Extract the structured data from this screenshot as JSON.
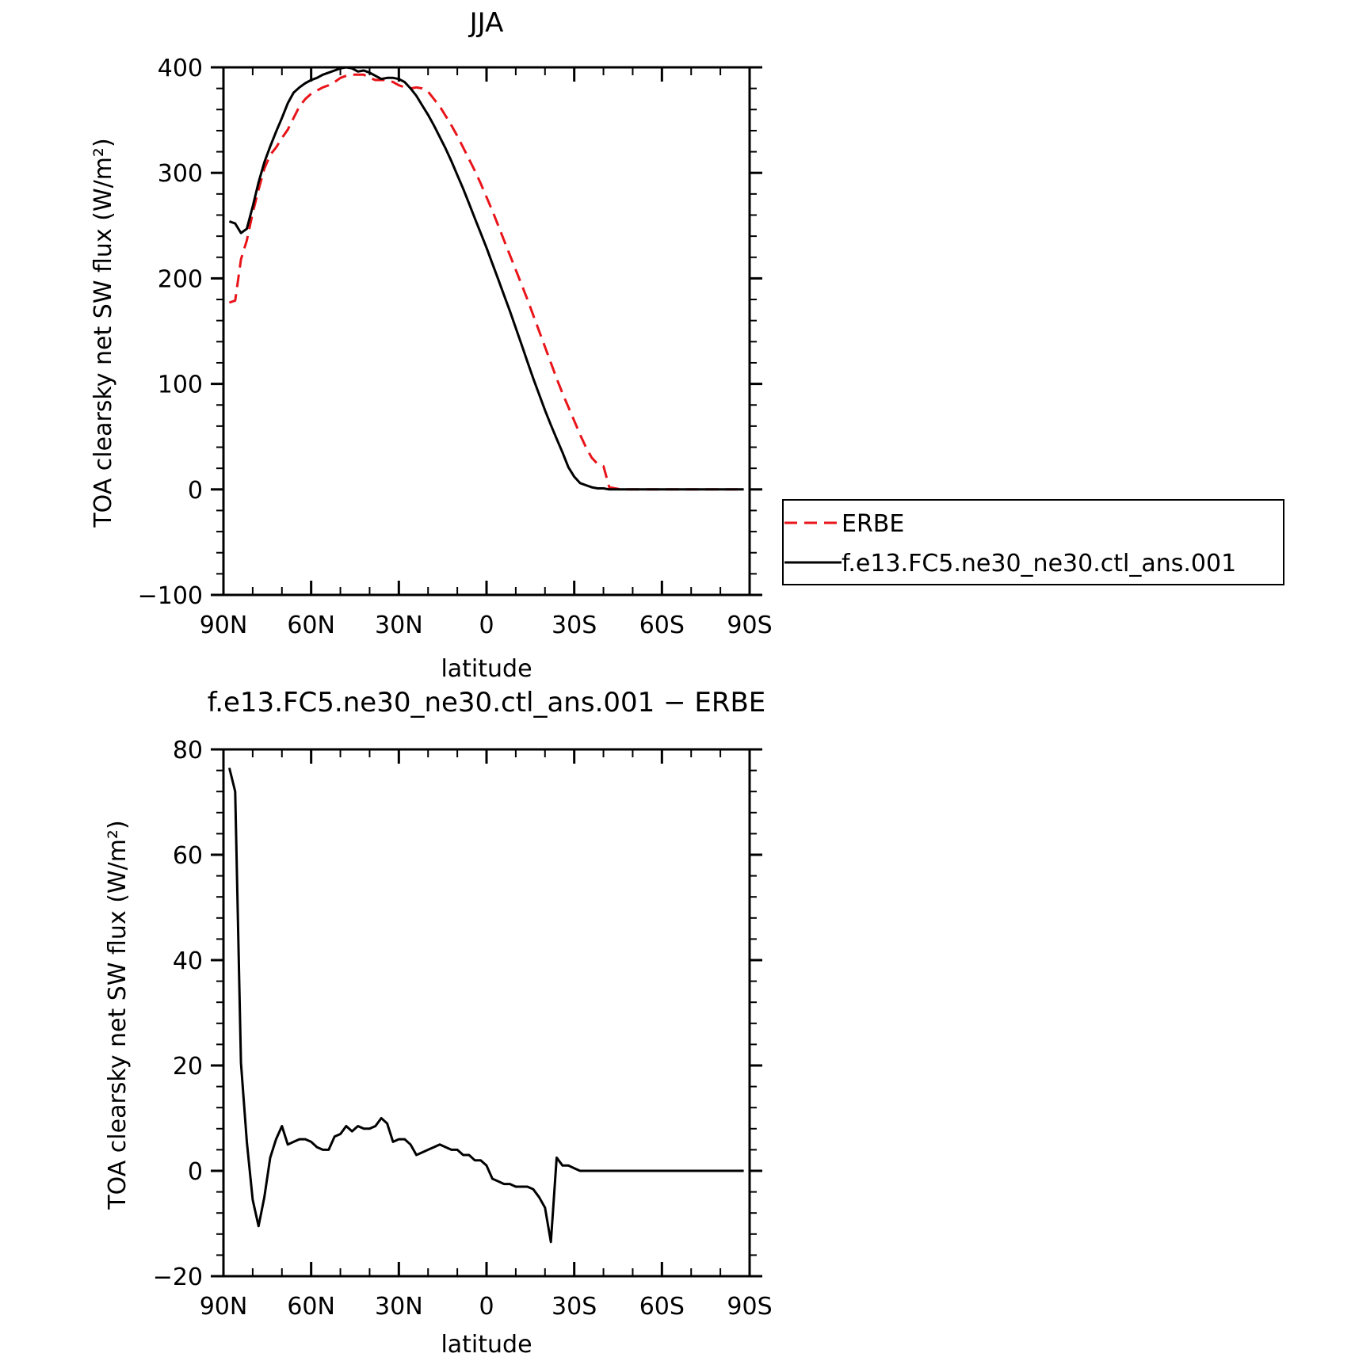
{
  "chart_data": [
    {
      "type": "line",
      "title": "JJA",
      "xlabel": "latitude",
      "ylabel": "TOA clearsky net SW flux (W/m²)",
      "xticks": [
        {
          "value": 90,
          "label": "90N"
        },
        {
          "value": 60,
          "label": "60N"
        },
        {
          "value": 30,
          "label": "30N"
        },
        {
          "value": 0,
          "label": "0"
        },
        {
          "value": -30,
          "label": "30S"
        },
        {
          "value": -60,
          "label": "60S"
        },
        {
          "value": -90,
          "label": "90S"
        }
      ],
      "yticks": [
        {
          "value": 400,
          "label": "400"
        },
        {
          "value": 300,
          "label": "300"
        },
        {
          "value": 200,
          "label": "200"
        },
        {
          "value": 100,
          "label": "100"
        },
        {
          "value": 0,
          "label": "0"
        },
        {
          "value": -100,
          "label": "−100"
        }
      ],
      "xlim": [
        90,
        -90
      ],
      "ylim": [
        -100,
        400
      ],
      "grid": false,
      "legend_position": "right",
      "series": [
        {
          "name": "ERBE",
          "color": "#e8141a",
          "dash": "dashed",
          "x": [
            88,
            86,
            84,
            82,
            80,
            78,
            76,
            74,
            72,
            70,
            68,
            66,
            64,
            62,
            60,
            58,
            56,
            54,
            52,
            50,
            48,
            46,
            44,
            42,
            40,
            38,
            36,
            34,
            32,
            30,
            28,
            26,
            24,
            22,
            20,
            18,
            16,
            14,
            12,
            10,
            8,
            6,
            4,
            2,
            0,
            -2,
            -4,
            -6,
            -8,
            -10,
            -12,
            -14,
            -16,
            -18,
            -20,
            -22,
            -24,
            -26,
            -28,
            -30,
            -32,
            -34,
            -36,
            -38,
            -40,
            -42,
            -44,
            -46,
            -48,
            -50,
            -52,
            -54,
            -56,
            -58,
            -60,
            -62,
            -64,
            -66,
            -68,
            -70,
            -72,
            -74,
            -76,
            -78,
            -80,
            -82,
            -84,
            -86,
            -88
          ],
          "y": [
            177,
            179,
            218,
            236,
            262,
            284,
            304,
            317,
            324,
            333,
            341,
            352,
            363,
            370,
            375,
            378,
            381,
            383,
            386,
            390,
            392,
            393,
            393,
            393,
            390,
            388,
            388,
            388,
            386,
            383,
            381,
            380,
            381,
            380,
            377,
            370,
            363,
            354,
            345,
            335,
            324,
            313,
            302,
            290,
            277,
            264,
            250,
            236,
            222,
            208,
            194,
            180,
            165,
            150,
            135,
            120,
            105,
            91,
            78,
            65,
            52,
            40,
            30,
            24,
            22,
            2,
            1,
            0,
            0,
            0,
            0,
            0,
            0,
            0,
            0,
            0,
            0,
            0,
            0,
            0,
            0,
            0,
            0,
            0,
            0,
            0,
            0,
            0,
            0
          ]
        },
        {
          "name": "f.e13.FC5.ne30_ne30.ctl_ans.001",
          "color": "#000000",
          "dash": "solid",
          "x": [
            88,
            86,
            84,
            82,
            80,
            78,
            76,
            74,
            72,
            70,
            68,
            66,
            64,
            62,
            60,
            58,
            56,
            54,
            52,
            50,
            48,
            46,
            44,
            42,
            40,
            38,
            36,
            34,
            32,
            30,
            28,
            26,
            24,
            22,
            20,
            18,
            16,
            14,
            12,
            10,
            8,
            6,
            4,
            2,
            0,
            -2,
            -4,
            -6,
            -8,
            -10,
            -12,
            -14,
            -16,
            -18,
            -20,
            -22,
            -24,
            -26,
            -28,
            -30,
            -32,
            -34,
            -36,
            -38,
            -40,
            -42,
            -44,
            -46,
            -48,
            -50,
            -52,
            -54,
            -56,
            -58,
            -60,
            -62,
            -64,
            -66,
            -68,
            -70,
            -72,
            -74,
            -76,
            -78,
            -80,
            -82,
            -84,
            -86,
            -88
          ],
          "y": [
            254,
            252,
            243,
            247,
            268,
            291,
            310,
            325,
            339,
            352,
            366,
            376,
            381,
            385,
            388,
            390,
            393,
            395,
            397,
            399,
            400,
            399,
            396,
            397,
            395,
            392,
            389,
            390,
            390,
            389,
            386,
            380,
            373,
            364,
            355,
            345,
            334,
            323,
            311,
            298,
            285,
            271,
            257,
            243,
            229,
            214,
            199,
            184,
            169,
            153,
            137,
            121,
            105,
            90,
            75,
            61,
            48,
            35,
            21,
            12,
            6,
            4,
            2,
            1,
            1,
            0,
            0,
            0,
            0,
            0,
            0,
            0,
            0,
            0,
            0,
            0,
            0,
            0,
            0,
            0,
            0,
            0,
            0,
            0,
            0,
            0,
            0,
            0,
            0
          ]
        }
      ]
    },
    {
      "type": "line",
      "title": "f.e13.FC5.ne30_ne30.ctl_ans.001 − ERBE",
      "xlabel": "latitude",
      "ylabel": "TOA clearsky net SW flux (W/m²)",
      "xticks": [
        {
          "value": 90,
          "label": "90N"
        },
        {
          "value": 60,
          "label": "60N"
        },
        {
          "value": 30,
          "label": "30N"
        },
        {
          "value": 0,
          "label": "0"
        },
        {
          "value": -30,
          "label": "30S"
        },
        {
          "value": -60,
          "label": "60S"
        },
        {
          "value": -90,
          "label": "90S"
        }
      ],
      "yticks": [
        {
          "value": 80,
          "label": "80"
        },
        {
          "value": 60,
          "label": "60"
        },
        {
          "value": 40,
          "label": "40"
        },
        {
          "value": 20,
          "label": "20"
        },
        {
          "value": 0,
          "label": "0"
        },
        {
          "value": -20,
          "label": "−20"
        }
      ],
      "xlim": [
        90,
        -90
      ],
      "ylim": [
        -20,
        80
      ],
      "grid": false,
      "series": [
        {
          "color": "#000000",
          "dash": "solid",
          "x": [
            88,
            86,
            84,
            82,
            80,
            78,
            76,
            74,
            72,
            70,
            68,
            66,
            64,
            62,
            60,
            58,
            56,
            54,
            52,
            50,
            48,
            46,
            44,
            42,
            40,
            38,
            36,
            34,
            32,
            30,
            28,
            26,
            24,
            22,
            20,
            18,
            16,
            14,
            12,
            10,
            8,
            6,
            4,
            2,
            0,
            -2,
            -4,
            -6,
            -8,
            -10,
            -12,
            -14,
            -16,
            -18,
            -20,
            -22,
            -24,
            -26,
            -28,
            -30,
            -32,
            -34,
            -36,
            -38,
            -40,
            -42,
            -44,
            -46,
            -48,
            -50,
            -52,
            -54,
            -56,
            -58,
            -60,
            -62,
            -64,
            -66,
            -68,
            -70,
            -72,
            -74,
            -76,
            -78,
            -80,
            -82,
            -84,
            -86,
            -88
          ],
          "y": [
            76.5,
            72,
            20.5,
            5.5,
            -5.5,
            -10.5,
            -5,
            2.5,
            6,
            8.5,
            5,
            5.5,
            6,
            6,
            5.5,
            4.5,
            4,
            4,
            6.5,
            7,
            8.5,
            7.5,
            8.5,
            8,
            8,
            8.5,
            10,
            9,
            5.5,
            6,
            6,
            5,
            3,
            3.5,
            4,
            4.5,
            5,
            4.5,
            4,
            4,
            3,
            3,
            2,
            2,
            1,
            -1.5,
            -2,
            -2.5,
            -2.5,
            -3,
            -3,
            -3,
            -3.5,
            -5,
            -7,
            -13.5,
            2.5,
            1,
            1,
            0.5,
            0,
            0,
            0,
            0,
            0,
            0,
            0,
            0,
            0,
            0,
            0,
            0,
            0,
            0,
            0,
            0,
            0,
            0,
            0,
            0,
            0,
            0,
            0,
            0,
            0,
            0,
            0,
            0,
            0
          ]
        }
      ]
    }
  ]
}
